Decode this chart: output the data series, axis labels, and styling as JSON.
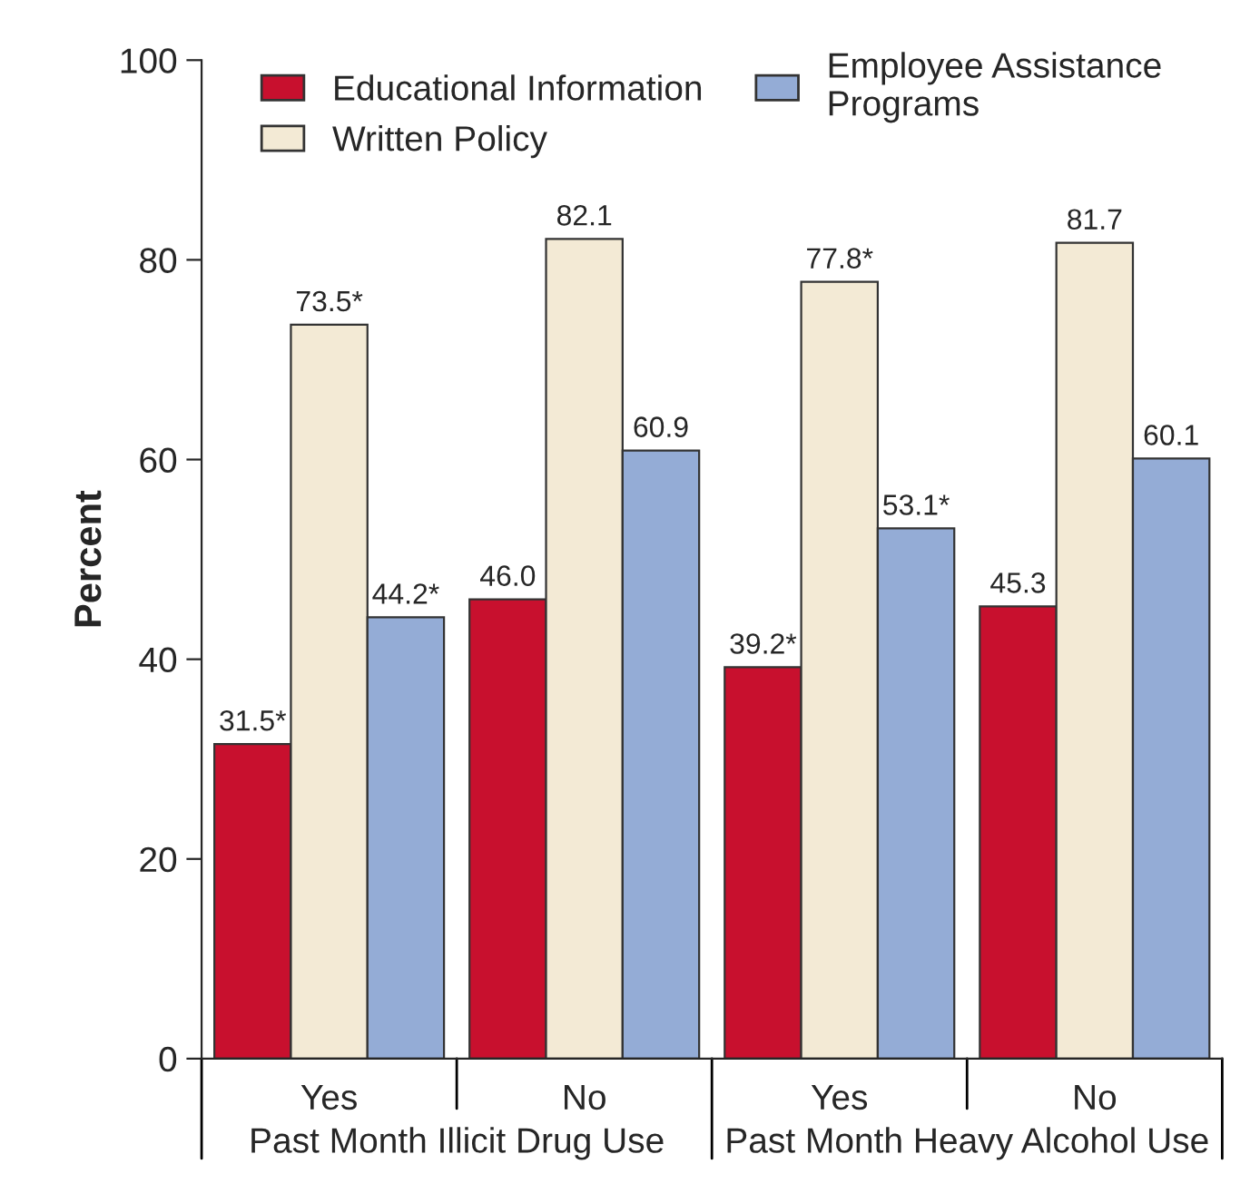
{
  "chart_data": {
    "type": "bar",
    "ylabel": "Percent",
    "categories": [
      "Yes",
      "No",
      "Yes",
      "No"
    ],
    "series": [
      {
        "name": "Educational Information",
        "color": "#c8102e",
        "values": [
          31.5,
          46.0,
          39.2,
          45.3
        ],
        "value_labels": [
          "31.5*",
          "46.0",
          "39.2*",
          "45.3"
        ]
      },
      {
        "name": "Written Policy",
        "color": "#f3ead5",
        "values": [
          73.5,
          82.1,
          77.8,
          81.7
        ],
        "value_labels": [
          "73.5*",
          "82.1",
          "77.8*",
          "81.7"
        ]
      },
      {
        "name": "Employee Assistance\nPrograms",
        "color": "#94acd6",
        "values": [
          44.2,
          60.9,
          53.1,
          60.1
        ],
        "value_labels": [
          "44.2*",
          "60.9",
          "53.1*",
          "60.1"
        ]
      }
    ],
    "annotations": [
      "Past Month Illicit Drug Use",
      "Past Month Heavy Alcohol Use"
    ],
    "ylim": [
      0,
      100
    ],
    "yticks": [
      0,
      20,
      40,
      60,
      80,
      100
    ],
    "grid": false,
    "legend": "top"
  }
}
